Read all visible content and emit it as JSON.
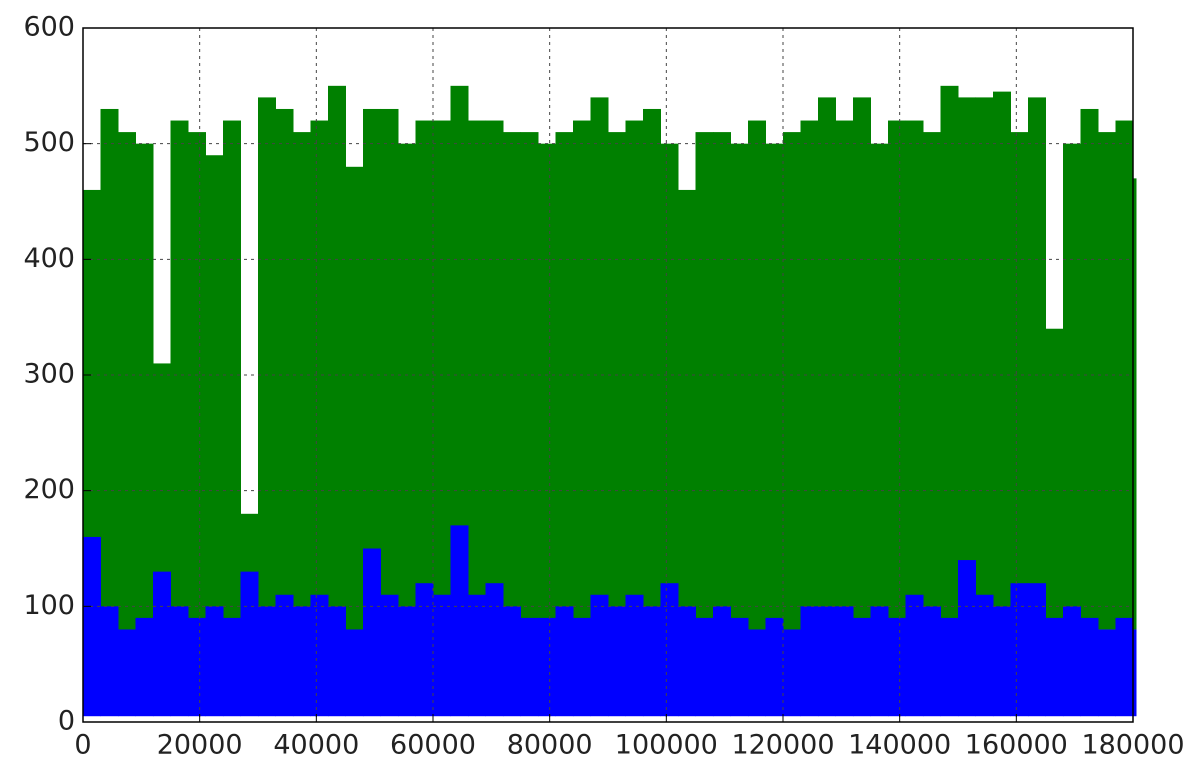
{
  "chart_data": {
    "type": "range",
    "x": [
      0,
      3000,
      6000,
      9000,
      12000,
      15000,
      18000,
      21000,
      24000,
      27000,
      30000,
      33000,
      36000,
      39000,
      42000,
      45000,
      48000,
      51000,
      54000,
      57000,
      60000,
      63000,
      66000,
      69000,
      72000,
      75000,
      78000,
      81000,
      84000,
      87000,
      90000,
      93000,
      96000,
      99000,
      102000,
      105000,
      108000,
      111000,
      114000,
      117000,
      120000,
      123000,
      126000,
      129000,
      132000,
      135000,
      138000,
      141000,
      144000,
      147000,
      150000,
      153000,
      156000,
      159000,
      162000,
      165000,
      168000,
      171000,
      174000,
      177000,
      180000
    ],
    "series": [
      {
        "color": "#008000",
        "values": [
          460,
          530,
          510,
          500,
          310,
          520,
          510,
          490,
          520,
          180,
          540,
          530,
          510,
          520,
          550,
          480,
          530,
          530,
          500,
          520,
          520,
          550,
          520,
          520,
          510,
          510,
          500,
          510,
          520,
          540,
          510,
          520,
          530,
          500,
          460,
          510,
          510,
          500,
          520,
          500,
          510,
          520,
          540,
          520,
          540,
          500,
          520,
          520,
          510,
          550,
          540,
          540,
          545,
          510,
          540,
          340,
          500,
          530,
          510,
          520,
          470
        ],
        "lows": [
          60,
          70,
          60,
          70,
          60,
          80,
          60,
          60,
          70,
          60,
          80,
          60,
          70,
          60,
          70,
          60,
          70,
          80,
          60,
          70,
          60,
          80,
          70,
          70,
          60,
          80,
          60,
          70,
          80,
          60,
          70,
          80,
          60,
          70,
          60,
          70,
          80,
          70,
          60,
          60,
          70,
          60,
          80,
          70,
          60,
          70,
          80,
          70,
          60,
          80,
          70,
          60,
          80,
          70,
          60,
          60,
          80,
          70,
          80,
          80,
          80
        ]
      },
      {
        "color": "#0000ff",
        "values": [
          160,
          100,
          80,
          90,
          130,
          100,
          90,
          100,
          90,
          130,
          100,
          110,
          100,
          110,
          100,
          80,
          150,
          110,
          100,
          120,
          110,
          170,
          110,
          120,
          100,
          90,
          90,
          100,
          90,
          110,
          100,
          110,
          100,
          120,
          100,
          90,
          100,
          90,
          80,
          90,
          80,
          100,
          100,
          100,
          90,
          100,
          90,
          110,
          100,
          90,
          140,
          110,
          100,
          120,
          120,
          90,
          100,
          90,
          80,
          90,
          80
        ],
        "lows": [
          5,
          5,
          5,
          5,
          5,
          5,
          5,
          5,
          5,
          5,
          5,
          5,
          5,
          5,
          5,
          5,
          5,
          5,
          5,
          5,
          5,
          5,
          5,
          5,
          5,
          5,
          5,
          5,
          5,
          5,
          5,
          5,
          5,
          5,
          5,
          5,
          5,
          5,
          5,
          5,
          5,
          5,
          5,
          5,
          5,
          5,
          5,
          5,
          5,
          5,
          5,
          5,
          5,
          5,
          5,
          5,
          5,
          5,
          5,
          5,
          5
        ]
      }
    ],
    "xlim": [
      0,
      180000
    ],
    "ylim": [
      0,
      600
    ],
    "xticks": [
      0,
      20000,
      40000,
      60000,
      80000,
      100000,
      120000,
      140000,
      160000,
      180000
    ],
    "yticks": [
      0,
      100,
      200,
      300,
      400,
      500,
      600
    ],
    "grid": true
  }
}
